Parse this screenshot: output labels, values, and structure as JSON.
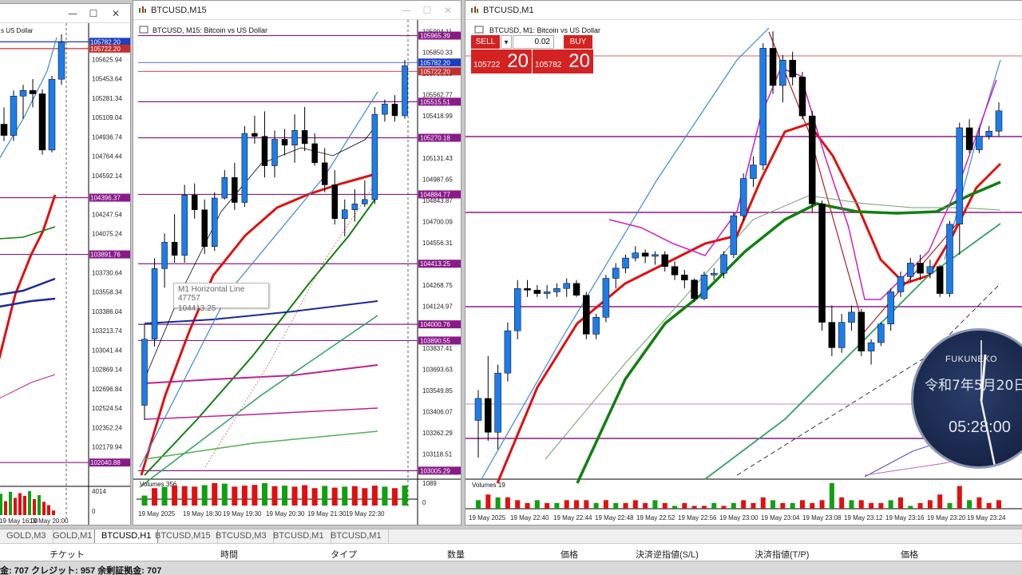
{
  "windows": {
    "h1": {
      "title": ""
    },
    "m15": {
      "title": "BTCUSD,M15",
      "inner_title": "BTCUSD, M15:  Bitcoin vs US Dollar"
    },
    "m1": {
      "title": "BTCUSD,M1",
      "inner_title": "BTCUSD, M1:  Bitcoin vs US Dollar"
    },
    "h1_inner_title": "s US Dollar"
  },
  "trade_panel": {
    "sell_label": "SELL",
    "buy_label": "BUY",
    "lot": "0.02",
    "sell_price_small": "105722",
    "sell_price_big": "20",
    "buy_price_small": "105782",
    "buy_price_big": "20"
  },
  "tooltip": {
    "line1": "M1 Horizontal Line 47757",
    "line2": "104413.25"
  },
  "clock": {
    "brand": "FUKUNEKO",
    "date": "令和7年5月20日",
    "time": "05:28:00"
  },
  "tabs": [
    {
      "label": "GOLD,M3"
    },
    {
      "label": "GOLD,M1"
    },
    {
      "label": "BTCUSD,H1"
    },
    {
      "label": "BTCUSD,M15"
    },
    {
      "label": "BTCUSD,M3"
    },
    {
      "label": "BTCUSD,M1"
    },
    {
      "label": "BTCUSD,M1"
    }
  ],
  "columns": [
    "チケット",
    "時間",
    "タイプ",
    "数量",
    "価格",
    "決済逆指値(S/L)",
    "決済指値(T/P)",
    "価格"
  ],
  "status_text": "金: 707  クレジット: 957  余剰証拠金: 707",
  "colors": {
    "bull": "#1e7ce8",
    "bear": "#000000",
    "level": "#8a1a8a",
    "ma_red": "#e01010",
    "ma_green": "#108010",
    "sell_red": "#d42222"
  },
  "chart_h1": {
    "price_labels": [
      "105625.94",
      "105453.64",
      "105281.34",
      "105109.04",
      "104936.74",
      "104764.44",
      "104592.14",
      "104247.54",
      "104075.24",
      "103730.64",
      "103558.34",
      "103386.04",
      "103213.74",
      "103041.44",
      "102869.14",
      "102696.84",
      "102524.54",
      "102352.24",
      "102179.94"
    ],
    "level_labels": [
      "105782.20",
      "105722.20",
      "104396.37",
      "103891.76",
      "102040.88"
    ],
    "time_labels": [
      "19 May 16:00",
      "19 May 20:00"
    ],
    "volume_label": "4014",
    "volume_zero": "0",
    "volumes": [
      3200,
      2100,
      3500,
      2600,
      3300,
      2900,
      3600,
      2400,
      3000,
      2000,
      1500,
      700
    ]
  },
  "chart_m15": {
    "price_labels": [
      "105994.11",
      "105850.33",
      "105706.55",
      "105562.77",
      "105418.99",
      "105131.43",
      "104987.65",
      "104843.87",
      "104700.09",
      "104556.31",
      "104268.75",
      "104124.97",
      "103837.41",
      "103693.63",
      "103549.85",
      "103406.07",
      "103262.29",
      "103118.51"
    ],
    "level_labels": [
      "105965.39",
      "105782.20",
      "105722.20",
      "105515.51",
      "105270.18",
      "104884.77",
      "104413.25",
      "104000.76",
      "103890.55",
      "103005.29"
    ],
    "time_labels": [
      "19 May 2025",
      "19 May 18:30",
      "19 May 19:30",
      "19 May 20:30",
      "19 May 21:30",
      "19 May 22:30"
    ],
    "volume_title": "Volumes 356",
    "volume_label": "1089",
    "volume_zero": "0",
    "candles": [
      {
        "o": 103450,
        "h": 104000,
        "l": 103350,
        "c": 103900
      },
      {
        "o": 103900,
        "h": 104450,
        "l": 103850,
        "c": 104380
      },
      {
        "o": 104380,
        "h": 104620,
        "l": 104250,
        "c": 104560
      },
      {
        "o": 104560,
        "h": 104750,
        "l": 104420,
        "c": 104470
      },
      {
        "o": 104470,
        "h": 104950,
        "l": 104420,
        "c": 104880
      },
      {
        "o": 104880,
        "h": 104960,
        "l": 104720,
        "c": 104780
      },
      {
        "o": 104780,
        "h": 104850,
        "l": 104480,
        "c": 104530
      },
      {
        "o": 104530,
        "h": 104900,
        "l": 104500,
        "c": 104860
      },
      {
        "o": 104860,
        "h": 105050,
        "l": 104850,
        "c": 105000
      },
      {
        "o": 105000,
        "h": 105100,
        "l": 104780,
        "c": 104830
      },
      {
        "o": 104830,
        "h": 105350,
        "l": 104800,
        "c": 105300
      },
      {
        "o": 105300,
        "h": 105420,
        "l": 105230,
        "c": 105280
      },
      {
        "o": 105280,
        "h": 105450,
        "l": 105000,
        "c": 105080
      },
      {
        "o": 105080,
        "h": 105320,
        "l": 105000,
        "c": 105260
      },
      {
        "o": 105260,
        "h": 105330,
        "l": 105150,
        "c": 105220
      },
      {
        "o": 105220,
        "h": 105430,
        "l": 105100,
        "c": 105320
      },
      {
        "o": 105320,
        "h": 105480,
        "l": 105180,
        "c": 105230
      },
      {
        "o": 105230,
        "h": 105300,
        "l": 105080,
        "c": 105100
      },
      {
        "o": 105100,
        "h": 105200,
        "l": 104900,
        "c": 104950
      },
      {
        "o": 104950,
        "h": 105050,
        "l": 104680,
        "c": 104720
      },
      {
        "o": 104720,
        "h": 104850,
        "l": 104600,
        "c": 104780
      },
      {
        "o": 104780,
        "h": 104920,
        "l": 104700,
        "c": 104820
      },
      {
        "o": 104820,
        "h": 104980,
        "l": 104800,
        "c": 104850
      },
      {
        "o": 104850,
        "h": 105480,
        "l": 104820,
        "c": 105430
      },
      {
        "o": 105430,
        "h": 105530,
        "l": 105380,
        "c": 105500
      },
      {
        "o": 105500,
        "h": 105560,
        "l": 105380,
        "c": 105420
      },
      {
        "o": 105420,
        "h": 105800,
        "l": 105400,
        "c": 105760
      }
    ],
    "volumes": [
      400,
      700,
      750,
      800,
      780,
      760,
      820,
      900,
      880,
      760,
      800,
      830,
      900,
      780,
      800,
      760,
      820,
      700,
      790,
      720,
      760,
      780,
      700,
      800,
      760,
      700,
      810
    ]
  },
  "chart_m1": {
    "time_labels": [
      "19 May 2025",
      "19 May 22:40",
      "19 May 22:44",
      "19 May 22:48",
      "19 May 22:52",
      "19 May 22:56",
      "19 May 23:00",
      "19 May 23:04",
      "19 May 23:08",
      "19 May 23:12",
      "19 May 23:16",
      "19 May 23:20",
      "19 May 23:24"
    ],
    "volume_title": "Volumes 19",
    "candles": [
      {
        "o": 103120,
        "h": 103300,
        "l": 102900,
        "c": 103250
      },
      {
        "o": 103250,
        "h": 103500,
        "l": 103000,
        "c": 103050
      },
      {
        "o": 103050,
        "h": 103450,
        "l": 102950,
        "c": 103400
      },
      {
        "o": 103400,
        "h": 103700,
        "l": 103350,
        "c": 103650
      },
      {
        "o": 103650,
        "h": 103950,
        "l": 103600,
        "c": 103900
      },
      {
        "o": 103900,
        "h": 103950,
        "l": 103850,
        "c": 103890
      },
      {
        "o": 103890,
        "h": 103920,
        "l": 103850,
        "c": 103870
      },
      {
        "o": 103870,
        "h": 103920,
        "l": 103840,
        "c": 103880
      },
      {
        "o": 103880,
        "h": 103930,
        "l": 103850,
        "c": 103900
      },
      {
        "o": 103900,
        "h": 103960,
        "l": 103850,
        "c": 103930
      },
      {
        "o": 103930,
        "h": 103950,
        "l": 103850,
        "c": 103860
      },
      {
        "o": 103860,
        "h": 103880,
        "l": 103600,
        "c": 103630
      },
      {
        "o": 103630,
        "h": 103750,
        "l": 103600,
        "c": 103730
      },
      {
        "o": 103730,
        "h": 103980,
        "l": 103700,
        "c": 103960
      },
      {
        "o": 103960,
        "h": 104050,
        "l": 103900,
        "c": 104020
      },
      {
        "o": 104020,
        "h": 104100,
        "l": 103990,
        "c": 104080
      },
      {
        "o": 104080,
        "h": 104150,
        "l": 104060,
        "c": 104110
      },
      {
        "o": 104110,
        "h": 104130,
        "l": 104050,
        "c": 104090
      },
      {
        "o": 104090,
        "h": 104120,
        "l": 104040,
        "c": 104100
      },
      {
        "o": 104100,
        "h": 104120,
        "l": 104000,
        "c": 104030
      },
      {
        "o": 104030,
        "h": 104060,
        "l": 103950,
        "c": 103980
      },
      {
        "o": 103980,
        "h": 104010,
        "l": 103900,
        "c": 103950
      },
      {
        "o": 103950,
        "h": 103960,
        "l": 103820,
        "c": 103840
      },
      {
        "o": 103840,
        "h": 104000,
        "l": 103830,
        "c": 103980
      },
      {
        "o": 103980,
        "h": 104020,
        "l": 103950,
        "c": 103990
      },
      {
        "o": 103990,
        "h": 104120,
        "l": 103960,
        "c": 104100
      },
      {
        "o": 104100,
        "h": 104350,
        "l": 104080,
        "c": 104330
      },
      {
        "o": 104330,
        "h": 104580,
        "l": 104300,
        "c": 104550
      },
      {
        "o": 104550,
        "h": 104680,
        "l": 104500,
        "c": 104630
      },
      {
        "o": 104630,
        "h": 105350,
        "l": 104600,
        "c": 105320
      },
      {
        "o": 105320,
        "h": 105420,
        "l": 105050,
        "c": 105100
      },
      {
        "o": 105100,
        "h": 105280,
        "l": 105000,
        "c": 105250
      },
      {
        "o": 105250,
        "h": 105300,
        "l": 105100,
        "c": 105150
      },
      {
        "o": 105150,
        "h": 105180,
        "l": 104900,
        "c": 104920
      },
      {
        "o": 104920,
        "h": 104950,
        "l": 104350,
        "c": 104400
      },
      {
        "o": 104400,
        "h": 104420,
        "l": 103650,
        "c": 103700
      },
      {
        "o": 103700,
        "h": 103800,
        "l": 103500,
        "c": 103550
      },
      {
        "o": 103550,
        "h": 103750,
        "l": 103520,
        "c": 103700
      },
      {
        "o": 103700,
        "h": 103800,
        "l": 103650,
        "c": 103760
      },
      {
        "o": 103760,
        "h": 103780,
        "l": 103500,
        "c": 103530
      },
      {
        "o": 103530,
        "h": 103600,
        "l": 103450,
        "c": 103580
      },
      {
        "o": 103580,
        "h": 103700,
        "l": 103560,
        "c": 103690
      },
      {
        "o": 103690,
        "h": 103900,
        "l": 103650,
        "c": 103880
      },
      {
        "o": 103880,
        "h": 104000,
        "l": 103850,
        "c": 103970
      },
      {
        "o": 103970,
        "h": 104080,
        "l": 103940,
        "c": 104050
      },
      {
        "o": 104050,
        "h": 104100,
        "l": 103950,
        "c": 103990
      },
      {
        "o": 103990,
        "h": 104070,
        "l": 103960,
        "c": 104030
      },
      {
        "o": 104030,
        "h": 104040,
        "l": 103850,
        "c": 103870
      },
      {
        "o": 103870,
        "h": 104300,
        "l": 103850,
        "c": 104280
      },
      {
        "o": 104280,
        "h": 104880,
        "l": 104100,
        "c": 104850
      },
      {
        "o": 104850,
        "h": 104900,
        "l": 104700,
        "c": 104720
      },
      {
        "o": 104720,
        "h": 104850,
        "l": 104700,
        "c": 104800
      },
      {
        "o": 104800,
        "h": 104860,
        "l": 104780,
        "c": 104830
      },
      {
        "o": 104830,
        "h": 105000,
        "l": 104800,
        "c": 104950
      }
    ],
    "volumes": [
      3,
      5,
      4,
      4,
      3,
      2,
      3,
      2,
      2,
      3,
      3,
      3,
      2,
      3,
      2,
      2,
      3,
      2,
      3,
      2,
      1,
      2,
      1,
      1,
      2,
      1,
      2,
      3,
      2,
      4,
      3,
      2,
      2,
      3,
      2,
      3,
      9,
      4,
      3,
      3,
      2,
      2,
      3,
      4,
      1,
      2,
      3,
      5,
      2,
      8,
      3,
      4,
      2,
      3
    ]
  }
}
